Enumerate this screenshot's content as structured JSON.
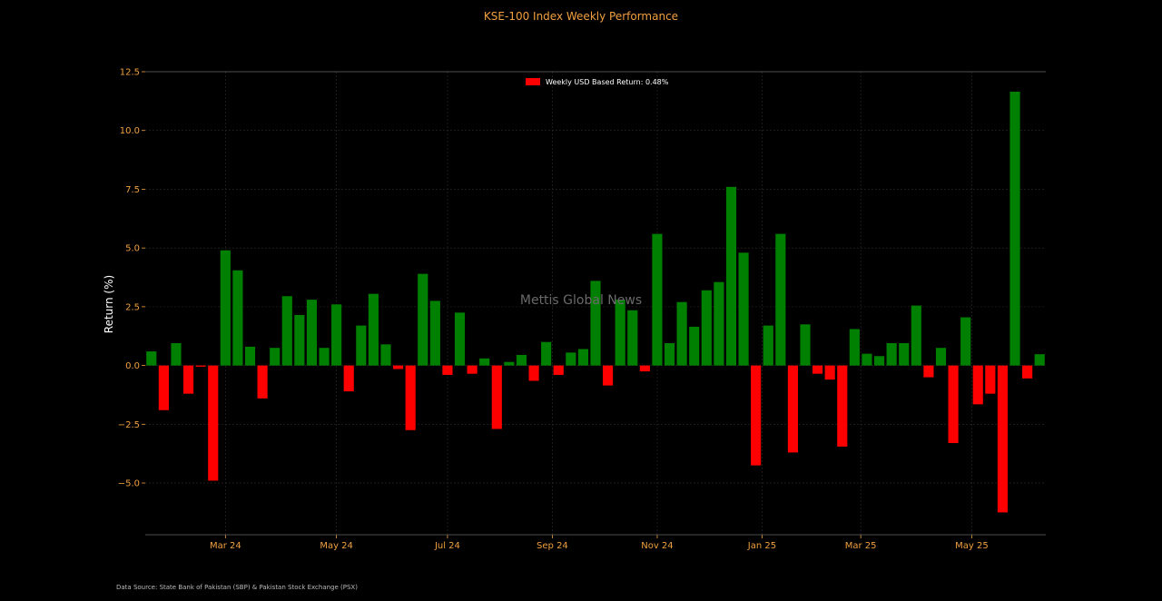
{
  "chart_data": {
    "type": "bar",
    "title": "KSE-100 Index Weekly Performance",
    "xlabel": "",
    "ylabel": "Return (%)",
    "ylim": [
      -7.2,
      12.5
    ],
    "yticks": [
      -5.0,
      -2.5,
      0.0,
      2.5,
      5.0,
      7.5,
      10.0,
      12.5
    ],
    "ytick_labels": [
      "−5.0",
      "−2.5",
      "0.0",
      "2.5",
      "5.0",
      "7.5",
      "10.0",
      "12.5"
    ],
    "x_tick_labels": [
      "Mar 24",
      "May 24",
      "Jul 24",
      "Sep 24",
      "Nov 24",
      "Jan 25",
      "Mar 25",
      "May 25"
    ],
    "x_tick_positions": [
      6.5,
      15.5,
      24.5,
      33.0,
      41.5,
      50.0,
      58.0,
      67.0
    ],
    "positive_color": "#008000",
    "negative_color": "#ff0000",
    "grid": true,
    "legend": {
      "label": "Weekly USD Based Return: 0.48%",
      "color": "#ff0000",
      "placement": "top-center"
    },
    "watermark": "Mettis Global News",
    "source": "Data Source: State Bank of Pakistan (SBP) & Pakistan Stock Exchange (PSX)",
    "values": [
      0.6,
      -1.9,
      0.95,
      -1.2,
      -0.05,
      -4.9,
      4.9,
      4.05,
      0.8,
      -1.4,
      0.75,
      2.95,
      2.15,
      2.8,
      0.75,
      2.6,
      -1.1,
      1.7,
      3.05,
      0.9,
      -0.15,
      -2.75,
      3.9,
      2.75,
      -0.4,
      2.25,
      -0.35,
      0.3,
      -2.7,
      0.15,
      0.45,
      -0.65,
      1.0,
      -0.4,
      0.55,
      0.7,
      3.6,
      -0.85,
      2.8,
      2.35,
      -0.25,
      5.6,
      0.95,
      2.7,
      1.65,
      3.2,
      3.55,
      7.6,
      4.8,
      -4.25,
      1.7,
      5.6,
      -3.7,
      1.75,
      -0.35,
      -0.6,
      -3.45,
      1.55,
      0.5,
      0.4,
      0.95,
      0.95,
      2.55,
      -0.5,
      0.75,
      -3.3,
      2.05,
      -1.65,
      -1.2,
      -6.25,
      11.65,
      -0.55,
      0.48
    ]
  }
}
